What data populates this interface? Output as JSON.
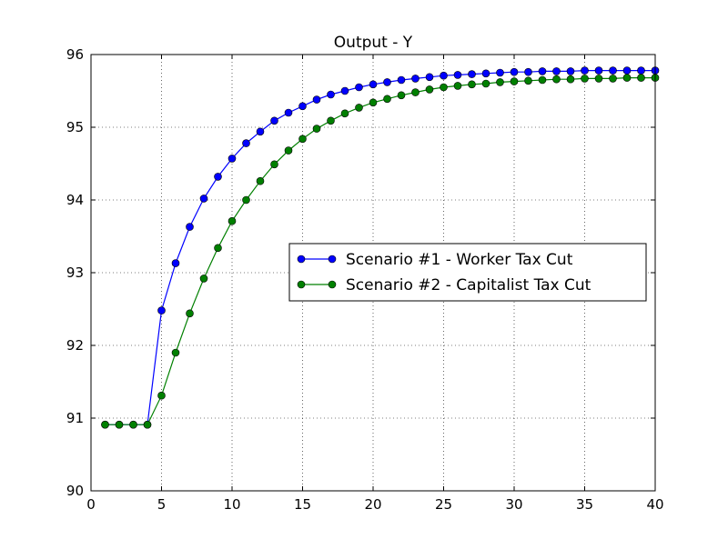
{
  "chart_data": {
    "type": "line",
    "title": "Output - Y",
    "xlabel": "",
    "ylabel": "",
    "xlim": [
      0,
      40
    ],
    "ylim": [
      90,
      96
    ],
    "xticks": [
      0,
      5,
      10,
      15,
      20,
      25,
      30,
      35,
      40
    ],
    "yticks": [
      90,
      91,
      92,
      93,
      94,
      95,
      96
    ],
    "grid": true,
    "legend_position": "center-right",
    "x": [
      1,
      2,
      3,
      4,
      5,
      6,
      7,
      8,
      9,
      10,
      11,
      12,
      13,
      14,
      15,
      16,
      17,
      18,
      19,
      20,
      21,
      22,
      23,
      24,
      25,
      26,
      27,
      28,
      29,
      30,
      31,
      32,
      33,
      34,
      35,
      36,
      37,
      38,
      39,
      40
    ],
    "series": [
      {
        "name": "Scenario #1 - Worker Tax Cut",
        "color": "#0000ff",
        "values": [
          90.91,
          90.91,
          90.91,
          90.91,
          92.48,
          93.13,
          93.63,
          94.02,
          94.32,
          94.57,
          94.78,
          94.94,
          95.09,
          95.2,
          95.29,
          95.38,
          95.45,
          95.5,
          95.55,
          95.59,
          95.62,
          95.65,
          95.67,
          95.69,
          95.71,
          95.72,
          95.73,
          95.74,
          95.75,
          95.76,
          95.76,
          95.77,
          95.77,
          95.77,
          95.78,
          95.78,
          95.78,
          95.78,
          95.78,
          95.78
        ]
      },
      {
        "name": "Scenario #2 - Capitalist Tax Cut",
        "color": "#008000",
        "values": [
          90.91,
          90.91,
          90.91,
          90.91,
          91.31,
          91.9,
          92.44,
          92.92,
          93.34,
          93.71,
          94.0,
          94.26,
          94.49,
          94.68,
          94.84,
          94.98,
          95.09,
          95.19,
          95.27,
          95.34,
          95.39,
          95.44,
          95.48,
          95.52,
          95.55,
          95.57,
          95.59,
          95.6,
          95.62,
          95.63,
          95.64,
          95.65,
          95.66,
          95.66,
          95.67,
          95.67,
          95.67,
          95.68,
          95.68,
          95.68
        ]
      }
    ]
  }
}
